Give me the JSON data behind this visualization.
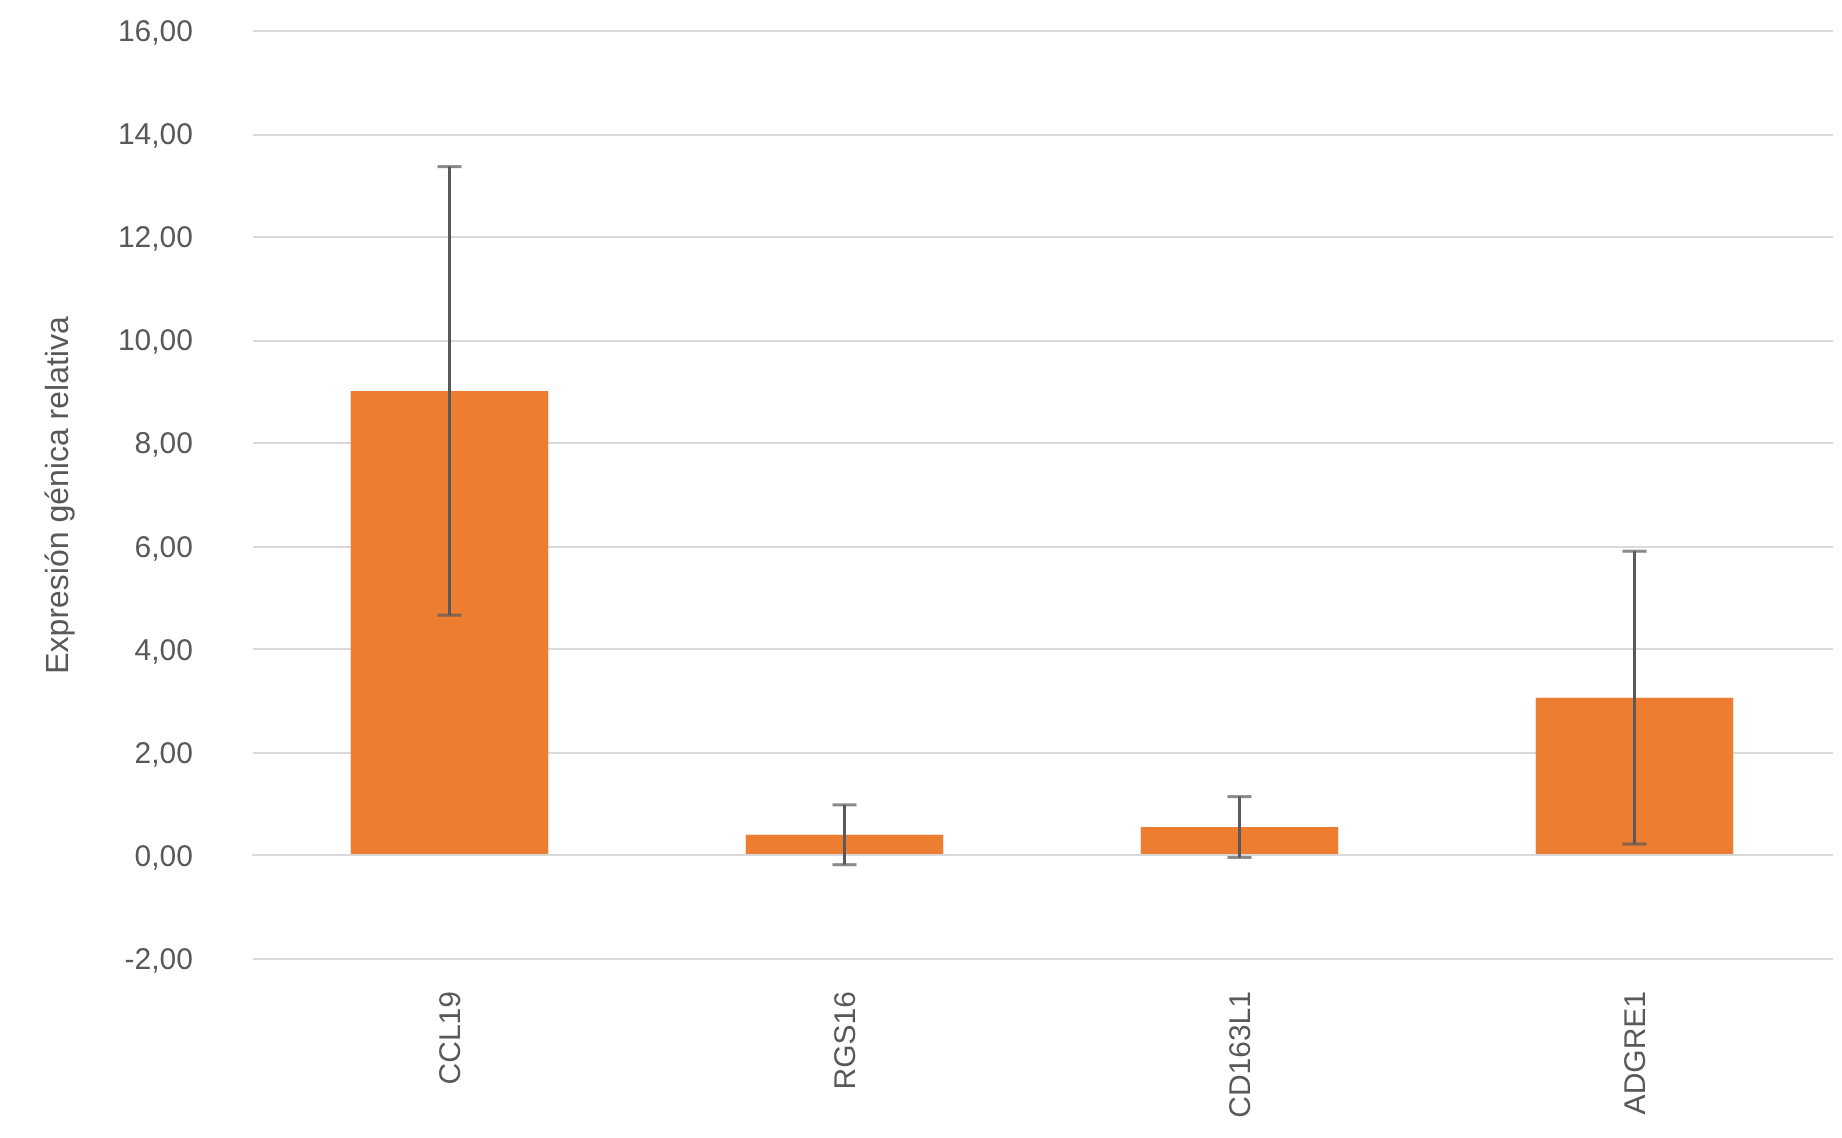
{
  "chart_data": {
    "type": "bar",
    "ylabel": "Expresión génica relativa",
    "categories": [
      "CCL19",
      "RGS16",
      "CD163L1",
      "ADGRE1"
    ],
    "series": [
      {
        "color": "#ed7d31",
        "values": [
          9.0,
          0.39,
          0.54,
          3.05
        ],
        "errors": [
          4.35,
          0.58,
          0.59,
          2.84
        ]
      }
    ],
    "ylim": [
      -2,
      16
    ],
    "yticks": [
      {
        "value": -2,
        "label": "-2,00"
      },
      {
        "value": 0,
        "label": "0,00"
      },
      {
        "value": 2,
        "label": "2,00"
      },
      {
        "value": 4,
        "label": "4,00"
      },
      {
        "value": 6,
        "label": "6,00"
      },
      {
        "value": 8,
        "label": "8,00"
      },
      {
        "value": 10,
        "label": "10,00"
      },
      {
        "value": 12,
        "label": "12,00"
      },
      {
        "value": 14,
        "label": "14,00"
      },
      {
        "value": 16,
        "label": "16,00"
      }
    ],
    "grid": "y",
    "legend": false
  }
}
